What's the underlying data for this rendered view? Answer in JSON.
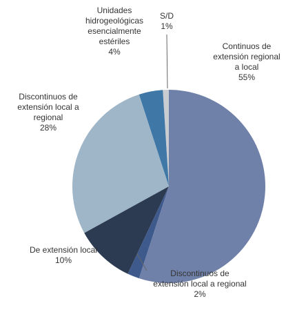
{
  "chart_data": {
    "type": "pie",
    "categories": [
      "Continuos de extensión regional a local",
      "Discontinuos de extensión local a regional",
      "De extensión local",
      "Discontinuos de extensión local a regional",
      "Unidades hidrogeológicas esencialmente estériles",
      "S/D"
    ],
    "values": [
      55,
      2,
      10,
      28,
      4,
      1
    ],
    "value_labels": [
      "55%",
      "2%",
      "10%",
      "28%",
      "4%",
      "1%"
    ],
    "colors": [
      "#7081a9",
      "#3e5a8c",
      "#2c3b52",
      "#9fb5c8",
      "#3f78a6",
      "#c9cdd1"
    ]
  }
}
